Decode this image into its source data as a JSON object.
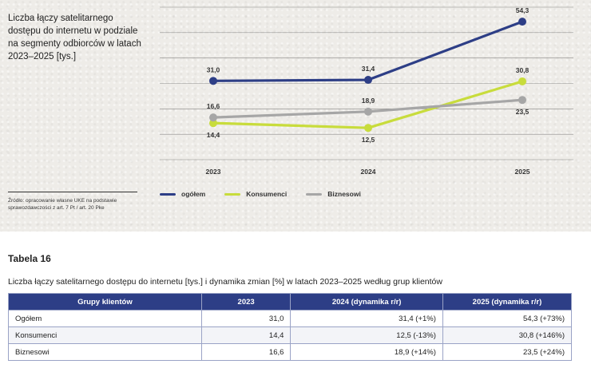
{
  "chart": {
    "title": "Liczba łączy satelitarnego dostępu do internetu w podziale na segmenty odbiorców w latach 2023–2025 [tys.]",
    "source": "Źródło: opracowanie własne UKE na podstawie sprawozdawczości z art. 7 Pt / art. 20 Pke"
  },
  "chart_data": {
    "type": "line",
    "title": "Liczba łączy satelitarnego dostępu do internetu w podziale na segmenty odbiorców w latach 2023–2025 [tys.]",
    "xlabel": "",
    "ylabel": "",
    "ylim": [
      0,
      60
    ],
    "grid": true,
    "legend_position": "bottom",
    "x": [
      "2023",
      "2024",
      "2025"
    ],
    "series": [
      {
        "name": "ogółem",
        "color": "#2d3e86",
        "values": [
          31.0,
          31.4,
          54.3
        ],
        "labels": [
          "31,0",
          "31,4",
          "54,3"
        ]
      },
      {
        "name": "Konsumenci",
        "color": "#c8dc3c",
        "values": [
          14.4,
          12.5,
          30.8
        ],
        "labels": [
          "14,4",
          "12,5",
          "30,8"
        ]
      },
      {
        "name": "Biznesowi",
        "color": "#a6a6a6",
        "values": [
          16.6,
          18.9,
          23.5
        ],
        "labels": [
          "16,6",
          "18,9",
          "23,5"
        ]
      }
    ]
  },
  "table": {
    "heading": "Tabela 16",
    "caption": "Liczba łączy satelitarnego dostępu do internetu [tys.] i dynamika zmian [%] w latach 2023–2025 według grup klientów",
    "headers": [
      "Grupy klientów",
      "2023",
      "2024 (dynamika r/r)",
      "2025 (dynamika r/r)"
    ],
    "rows": [
      [
        "Ogółem",
        "31,0",
        "31,4 (+1%)",
        "54,3 (+73%)"
      ],
      [
        "Konsumenci",
        "14,4",
        "12,5 (-13%)",
        "30,8 (+146%)"
      ],
      [
        "Biznesowi",
        "16,6",
        "18,9 (+14%)",
        "23,5 (+24%)"
      ]
    ]
  }
}
